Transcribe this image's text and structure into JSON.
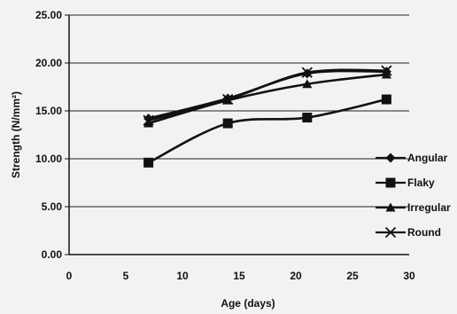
{
  "chart_data": {
    "type": "line",
    "xlabel": "Age (days)",
    "ylabel": "Strength (N/mm²)",
    "xlim": [
      0,
      30
    ],
    "ylim": [
      0,
      25
    ],
    "x_ticks": [
      "0",
      "5",
      "10",
      "15",
      "20",
      "25",
      "30"
    ],
    "y_ticks": [
      "0.00",
      "5.00",
      "10.00",
      "15.00",
      "20.00",
      "25.00"
    ],
    "x": [
      7,
      14,
      21,
      28
    ],
    "grid": "horizontal",
    "legend_position": "right",
    "series": [
      {
        "name": "Angular",
        "marker": "diamond",
        "values": [
          14.2,
          16.3,
          18.9,
          19.1
        ]
      },
      {
        "name": "Flaky",
        "marker": "square",
        "values": [
          9.6,
          13.7,
          14.3,
          16.2
        ]
      },
      {
        "name": "Irregular",
        "marker": "triangle",
        "values": [
          13.7,
          16.1,
          17.8,
          18.8
        ]
      },
      {
        "name": "Round",
        "marker": "x",
        "values": [
          14.0,
          16.2,
          19.0,
          19.2
        ]
      }
    ],
    "line_color": "#111111"
  }
}
